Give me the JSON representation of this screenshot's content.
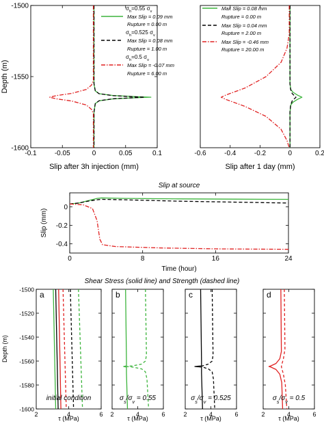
{
  "chart_data": [
    {
      "type": "line",
      "xlabel": "Slip after 3h injection (mm)",
      "ylabel": "Depth (m)",
      "xlim": [
        -0.1,
        0.1
      ],
      "ylim": [
        -1600,
        -1500
      ],
      "xticks": [
        "-0.1",
        "-0.05",
        "0",
        "0.05",
        "0.1"
      ],
      "yticks": [
        "-1500",
        "-1550",
        "-1600"
      ],
      "series": [
        {
          "color": "#3cb43c",
          "dash": "solid",
          "legend_lines": [
            "σh=0.55 σv",
            "Max Slip = 0.09 mm",
            "Rupture = 0.00 m"
          ],
          "points": [
            [
              0,
              -1500
            ],
            [
              0,
              -1555
            ],
            [
              0.002,
              -1560
            ],
            [
              0.008,
              -1562
            ],
            [
              0.03,
              -1563.3
            ],
            [
              0.07,
              -1564.2
            ],
            [
              0.09,
              -1564.5
            ],
            [
              0.07,
              -1564.8
            ],
            [
              0.03,
              -1565.7
            ],
            [
              0.008,
              -1567
            ],
            [
              0.002,
              -1569
            ],
            [
              0,
              -1575
            ],
            [
              0,
              -1600
            ]
          ]
        },
        {
          "color": "#000000",
          "dash": "5,3",
          "legend_lines": [
            "σh=0.525 σv",
            "Max Slip = 0.08 mm",
            "Rupture = 1.00 m"
          ],
          "points": [
            [
              0,
              -1500
            ],
            [
              0,
              -1555
            ],
            [
              0.002,
              -1560
            ],
            [
              0.008,
              -1562
            ],
            [
              0.03,
              -1563.4
            ],
            [
              0.065,
              -1564.2
            ],
            [
              0.08,
              -1564.5
            ],
            [
              0.065,
              -1564.8
            ],
            [
              0.03,
              -1565.6
            ],
            [
              0.008,
              -1567
            ],
            [
              0.002,
              -1569
            ],
            [
              0,
              -1575
            ],
            [
              0,
              -1600
            ]
          ]
        },
        {
          "color": "#e02020",
          "dash": "6,2,1.5,2",
          "legend_lines": [
            "σh=0.5 σv",
            "Max Slip = -0.07 mm",
            "Rupture = 6.00 m"
          ],
          "points": [
            [
              -0.001,
              -1500
            ],
            [
              -0.001,
              -1553
            ],
            [
              -0.004,
              -1556
            ],
            [
              -0.012,
              -1559
            ],
            [
              -0.035,
              -1561.8
            ],
            [
              -0.06,
              -1563.4
            ],
            [
              -0.07,
              -1564.5
            ],
            [
              -0.06,
              -1565.6
            ],
            [
              -0.035,
              -1567.2
            ],
            [
              -0.012,
              -1570
            ],
            [
              -0.004,
              -1573
            ],
            [
              -0.001,
              -1576
            ],
            [
              -0.001,
              -1600
            ]
          ]
        }
      ]
    },
    {
      "type": "line",
      "xlabel": "Slip after 1 day (mm)",
      "xlim": [
        -0.6,
        0.2
      ],
      "ylim": [
        -1600,
        -1500
      ],
      "xticks": [
        "-0.6",
        "-0.4",
        "-0.2",
        "0",
        "0.2"
      ],
      "series": [
        {
          "color": "#3cb43c",
          "dash": "solid",
          "legend_lines": [
            "Max Slip = 0.08 mm",
            "Rupture = 0.00 m"
          ],
          "points": [
            [
              0,
              -1500
            ],
            [
              0,
              -1555
            ],
            [
              0.005,
              -1559
            ],
            [
              0.02,
              -1561
            ],
            [
              0.05,
              -1563
            ],
            [
              0.08,
              -1564.5
            ],
            [
              0.05,
              -1566
            ],
            [
              0.02,
              -1568
            ],
            [
              0.005,
              -1570
            ],
            [
              0,
              -1575
            ],
            [
              0,
              -1600
            ]
          ]
        },
        {
          "color": "#000000",
          "dash": "5,3",
          "legend_lines": [
            "Max Slip = 0.04 mm",
            "Rupture = 2.00 m"
          ],
          "points": [
            [
              0,
              -1500
            ],
            [
              0,
              -1555
            ],
            [
              0.004,
              -1559
            ],
            [
              0.015,
              -1562
            ],
            [
              0.04,
              -1564.5
            ],
            [
              0.015,
              -1567
            ],
            [
              0.004,
              -1570
            ],
            [
              0,
              -1575
            ],
            [
              0,
              -1600
            ]
          ]
        },
        {
          "color": "#e02020",
          "dash": "6,2,1.5,2",
          "legend_lines": [
            "Max Slip = -0.46 mm",
            "Rupture = 20.00 m"
          ],
          "points": [
            [
              -0.005,
              -1500
            ],
            [
              -0.005,
              -1520
            ],
            [
              -0.02,
              -1530
            ],
            [
              -0.06,
              -1540
            ],
            [
              -0.16,
              -1550
            ],
            [
              -0.3,
              -1558
            ],
            [
              -0.43,
              -1563
            ],
            [
              -0.46,
              -1564.5
            ],
            [
              -0.43,
              -1566
            ],
            [
              -0.3,
              -1571
            ],
            [
              -0.16,
              -1578
            ],
            [
              -0.06,
              -1587
            ],
            [
              -0.02,
              -1595
            ],
            [
              -0.005,
              -1600
            ]
          ]
        }
      ]
    },
    {
      "type": "line",
      "title": "Slip at source",
      "xlabel": "Time (hour)",
      "ylabel": "Slip (mm)",
      "xlim": [
        0,
        24
      ],
      "ylim": [
        -0.5,
        0.15
      ],
      "xticks": [
        "0",
        "8",
        "16",
        "24"
      ],
      "yticks": [
        "0",
        "-0.2",
        "-0.4"
      ],
      "series": [
        {
          "color": "#3cb43c",
          "dash": "solid",
          "points": [
            [
              0,
              0.03
            ],
            [
              1,
              0.04
            ],
            [
              2,
              0.065
            ],
            [
              3,
              0.09
            ],
            [
              3.5,
              0.095
            ],
            [
              6,
              0.09
            ],
            [
              12,
              0.085
            ],
            [
              18,
              0.082
            ],
            [
              24,
              0.08
            ]
          ]
        },
        {
          "color": "#000000",
          "dash": "5,3",
          "points": [
            [
              0,
              0.03
            ],
            [
              1,
              0.04
            ],
            [
              2,
              0.06
            ],
            [
              3,
              0.075
            ],
            [
              3.5,
              0.08
            ],
            [
              6,
              0.075
            ],
            [
              12,
              0.06
            ],
            [
              18,
              0.05
            ],
            [
              24,
              0.04
            ]
          ]
        },
        {
          "color": "#e02020",
          "dash": "6,2,1.5,2",
          "points": [
            [
              0,
              0.03
            ],
            [
              1.5,
              0.02
            ],
            [
              2.5,
              -0.02
            ],
            [
              3,
              -0.15
            ],
            [
              3.3,
              -0.35
            ],
            [
              3.6,
              -0.41
            ],
            [
              5,
              -0.43
            ],
            [
              10,
              -0.445
            ],
            [
              16,
              -0.455
            ],
            [
              24,
              -0.46
            ]
          ]
        }
      ]
    },
    {
      "type": "line",
      "title": "Shear Stress (solid line) and Strength (dashed line)",
      "ylabel": "Depth (m)",
      "xlabel": "τ (MPa)",
      "ylim": [
        -1600,
        -1500
      ],
      "yticks": [
        "-1500",
        "-1520",
        "-1540",
        "-1560",
        "-1580",
        "-1600"
      ],
      "panels": [
        {
          "letter": "a",
          "annotation": "initial condition",
          "xlim": [
            2,
            6
          ],
          "xticks": [
            "2",
            "4",
            "6"
          ],
          "series": [
            {
              "color": "#3cb43c",
              "dash": "solid",
              "points": [
                [
                  3.05,
                  -1500
                ],
                [
                  3.2,
                  -1600
                ]
              ]
            },
            {
              "color": "#000000",
              "dash": "solid",
              "points": [
                [
                  3.2,
                  -1500
                ],
                [
                  3.35,
                  -1600
                ]
              ]
            },
            {
              "color": "#e02020",
              "dash": "solid",
              "points": [
                [
                  3.38,
                  -1500
                ],
                [
                  3.52,
                  -1600
                ]
              ]
            },
            {
              "color": "#e02020",
              "dash": "4,3",
              "points": [
                [
                  3.65,
                  -1500
                ],
                [
                  3.85,
                  -1600
                ]
              ]
            },
            {
              "color": "#000000",
              "dash": "4,3",
              "points": [
                [
                  4.1,
                  -1500
                ],
                [
                  4.3,
                  -1600
                ]
              ]
            },
            {
              "color": "#3cb43c",
              "dash": "4,3",
              "points": [
                [
                  4.6,
                  -1500
                ],
                [
                  4.85,
                  -1600
                ]
              ]
            }
          ]
        },
        {
          "letter": "b",
          "annotation": "σs/σv = 0.55",
          "xlim": [
            2,
            6
          ],
          "xticks": [
            "2",
            "4",
            "6"
          ],
          "series": [
            {
              "color": "#3cb43c",
              "dash": "solid",
              "points": [
                [
                  3.05,
                  -1500
                ],
                [
                  3.12,
                  -1560
                ],
                [
                  3.12,
                  -1564
                ],
                [
                  2.9,
                  -1564.5
                ],
                [
                  3.12,
                  -1565
                ],
                [
                  3.12,
                  -1570
                ],
                [
                  3.2,
                  -1600
                ]
              ]
            },
            {
              "color": "#3cb43c",
              "dash": "4,3",
              "points": [
                [
                  4.6,
                  -1500
                ],
                [
                  4.68,
                  -1555
                ],
                [
                  4.6,
                  -1560
                ],
                [
                  4.3,
                  -1562.5
                ],
                [
                  3.6,
                  -1564
                ],
                [
                  3.15,
                  -1564.5
                ],
                [
                  3.6,
                  -1565
                ],
                [
                  4.3,
                  -1566.5
                ],
                [
                  4.6,
                  -1569
                ],
                [
                  4.72,
                  -1575
                ],
                [
                  4.85,
                  -1600
                ]
              ]
            }
          ]
        },
        {
          "letter": "c",
          "annotation": "σs/σv = 0.525",
          "xlim": [
            2,
            6
          ],
          "xticks": [
            "2",
            "4",
            "6"
          ],
          "series": [
            {
              "color": "#000000",
              "dash": "solid",
              "points": [
                [
                  3.2,
                  -1500
                ],
                [
                  3.27,
                  -1560
                ],
                [
                  3.27,
                  -1564
                ],
                [
                  2.75,
                  -1564.5
                ],
                [
                  3.27,
                  -1565
                ],
                [
                  3.27,
                  -1570
                ],
                [
                  3.35,
                  -1600
                ]
              ]
            },
            {
              "color": "#000000",
              "dash": "4,3",
              "points": [
                [
                  4.1,
                  -1500
                ],
                [
                  4.17,
                  -1555
                ],
                [
                  4.1,
                  -1560
                ],
                [
                  3.8,
                  -1562.5
                ],
                [
                  3.35,
                  -1564
                ],
                [
                  3.28,
                  -1564.5
                ],
                [
                  3.35,
                  -1565
                ],
                [
                  3.8,
                  -1566.5
                ],
                [
                  4.1,
                  -1569
                ],
                [
                  4.2,
                  -1575
                ],
                [
                  4.3,
                  -1600
                ]
              ]
            }
          ]
        },
        {
          "letter": "d",
          "annotation": "σs/σv = 0.5",
          "xlim": [
            2,
            6
          ],
          "xticks": [
            "2",
            "4",
            "6"
          ],
          "series": [
            {
              "color": "#e02020",
              "dash": "solid",
              "points": [
                [
                  3.38,
                  -1500
                ],
                [
                  3.42,
                  -1552
                ],
                [
                  3.3,
                  -1558
                ],
                [
                  3.0,
                  -1562
                ],
                [
                  2.6,
                  -1564
                ],
                [
                  2.45,
                  -1564.5
                ],
                [
                  2.6,
                  -1565
                ],
                [
                  3.0,
                  -1567
                ],
                [
                  3.3,
                  -1571
                ],
                [
                  3.45,
                  -1578
                ],
                [
                  3.52,
                  -1600
                ]
              ]
            },
            {
              "color": "#e02020",
              "dash": "4,3",
              "points": [
                [
                  3.65,
                  -1500
                ],
                [
                  3.7,
                  -1550
                ],
                [
                  3.58,
                  -1558
                ],
                [
                  3.45,
                  -1563
                ],
                [
                  3.42,
                  -1564.5
                ],
                [
                  3.45,
                  -1566
                ],
                [
                  3.58,
                  -1571
                ],
                [
                  3.73,
                  -1580
                ],
                [
                  3.85,
                  -1600
                ]
              ]
            }
          ]
        }
      ]
    }
  ]
}
